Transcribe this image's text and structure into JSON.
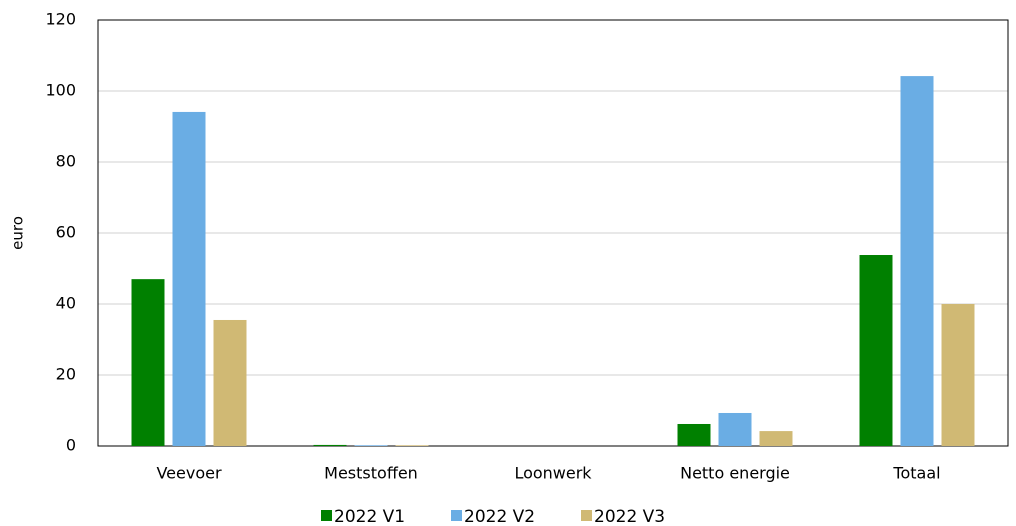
{
  "chart_data": {
    "type": "bar",
    "y_label": "euro",
    "categories": [
      "Veevoer",
      "Meststoffen",
      "Loonwerk",
      "Netto energie",
      "Totaal"
    ],
    "series": [
      {
        "name": "2022 V1",
        "color": "#008000",
        "values": [
          47.0,
          0.3,
          0,
          6.2,
          53.8
        ]
      },
      {
        "name": "2022 V2",
        "color": "#6aade4",
        "values": [
          94.1,
          0.2,
          0,
          9.3,
          104.2
        ]
      },
      {
        "name": "2022 V3",
        "color": "#d0b974",
        "values": [
          35.5,
          0.2,
          0,
          4.2,
          40.0
        ]
      }
    ],
    "ylim": [
      0,
      120
    ],
    "yticks": [
      0,
      20,
      40,
      60,
      80,
      100,
      120
    ],
    "grid": true,
    "legend": "bottom"
  }
}
